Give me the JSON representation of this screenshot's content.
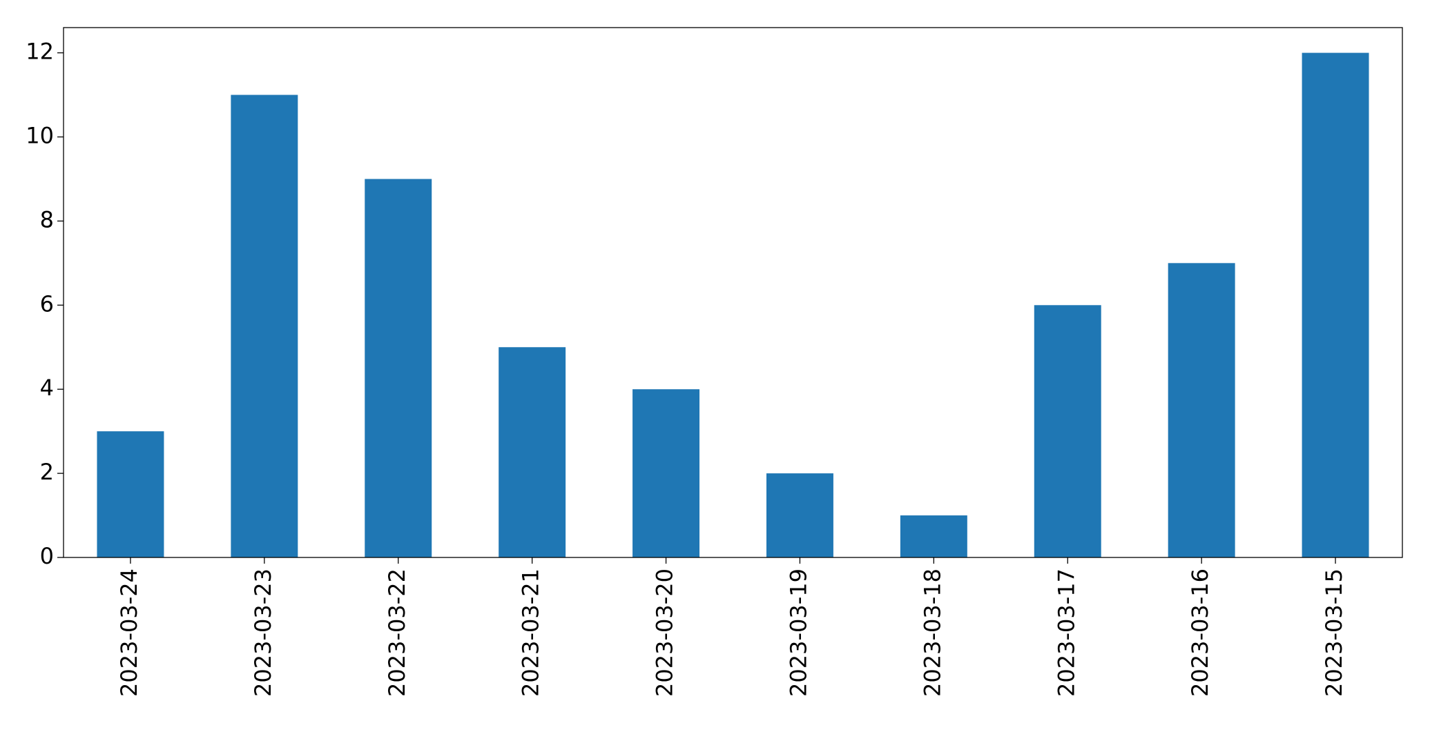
{
  "chart_data": {
    "type": "bar",
    "categories": [
      "2023-03-24",
      "2023-03-23",
      "2023-03-22",
      "2023-03-21",
      "2023-03-20",
      "2023-03-19",
      "2023-03-18",
      "2023-03-17",
      "2023-03-16",
      "2023-03-15"
    ],
    "values": [
      3,
      11,
      9,
      5,
      4,
      2,
      1,
      6,
      7,
      12
    ],
    "color": "#1f77b4",
    "ylim": [
      0,
      12.6
    ],
    "yticks": [
      0,
      2,
      4,
      6,
      8,
      10,
      12
    ],
    "grid": false
  }
}
